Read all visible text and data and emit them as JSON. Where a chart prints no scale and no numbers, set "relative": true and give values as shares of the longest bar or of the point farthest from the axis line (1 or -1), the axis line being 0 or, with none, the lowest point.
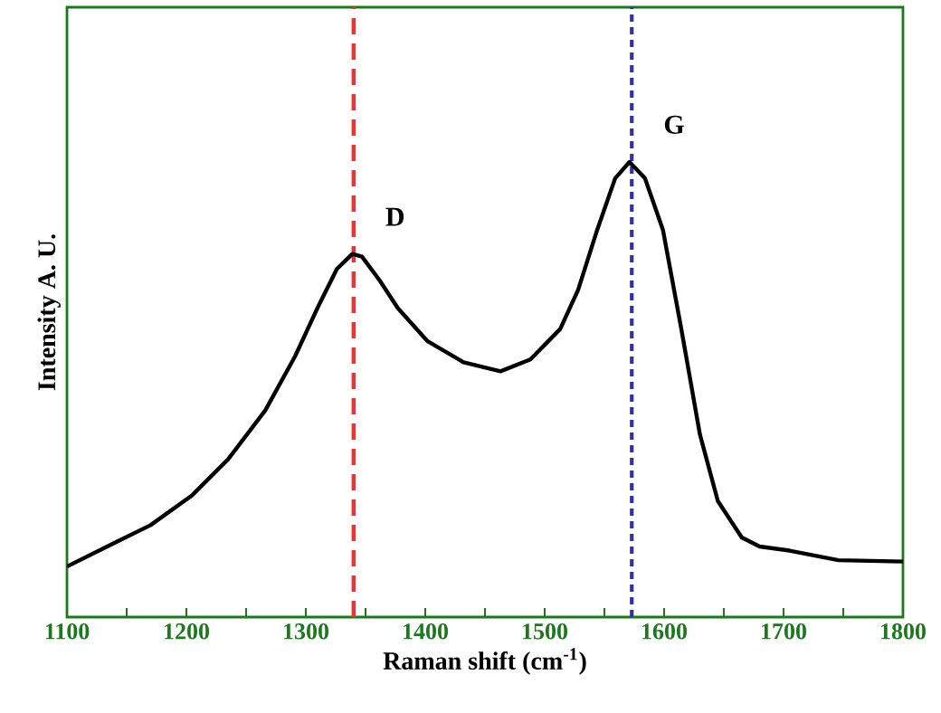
{
  "chart_data": {
    "type": "line",
    "xlabel": "Raman shift (cm$^{-1}$)",
    "ylabel": "Intensity A. U.",
    "relative": true,
    "xlim": [
      1100,
      1800
    ],
    "xticks": [
      1100,
      {
        "value": 1150,
        "label": null
      },
      1200,
      {
        "value": 1250,
        "label": null
      },
      1300,
      {
        "value": 1350,
        "label": null
      },
      1400,
      {
        "value": 1450,
        "label": null
      },
      1500,
      {
        "value": 1550,
        "label": null
      },
      1600,
      {
        "value": 1650,
        "label": null
      },
      1700,
      {
        "value": 1750,
        "label": null
      },
      1800
    ],
    "series": [
      {
        "color": "#000000",
        "x": [
          1100,
          1139,
          1170,
          1205,
          1235,
          1266,
          1291,
          1311,
          1326,
          1339,
          1347,
          1362,
          1377,
          1402,
          1432,
          1463,
          1488,
          1513,
          1528,
          1544,
          1559,
          1571,
          1584,
          1599,
          1614,
          1630,
          1645,
          1665,
          1680,
          1705,
          1746,
          1800
        ],
        "values": [
          0.111,
          0.162,
          0.202,
          0.268,
          0.347,
          0.454,
          0.573,
          0.686,
          0.765,
          0.798,
          0.792,
          0.739,
          0.679,
          0.606,
          0.56,
          0.54,
          0.566,
          0.633,
          0.719,
          0.851,
          0.964,
          1,
          0.964,
          0.851,
          0.639,
          0.401,
          0.255,
          0.175,
          0.155,
          0.146,
          0.125,
          0.122
        ]
      }
    ],
    "ref_lines": [
      {
        "axis": "x",
        "value": 1340,
        "color": "#ee3333",
        "line_style": "dashed"
      },
      {
        "axis": "x",
        "value": 1573,
        "color": "#333399",
        "line_style": "dotted"
      }
    ],
    "annotations": [
      "D",
      "G"
    ]
  }
}
